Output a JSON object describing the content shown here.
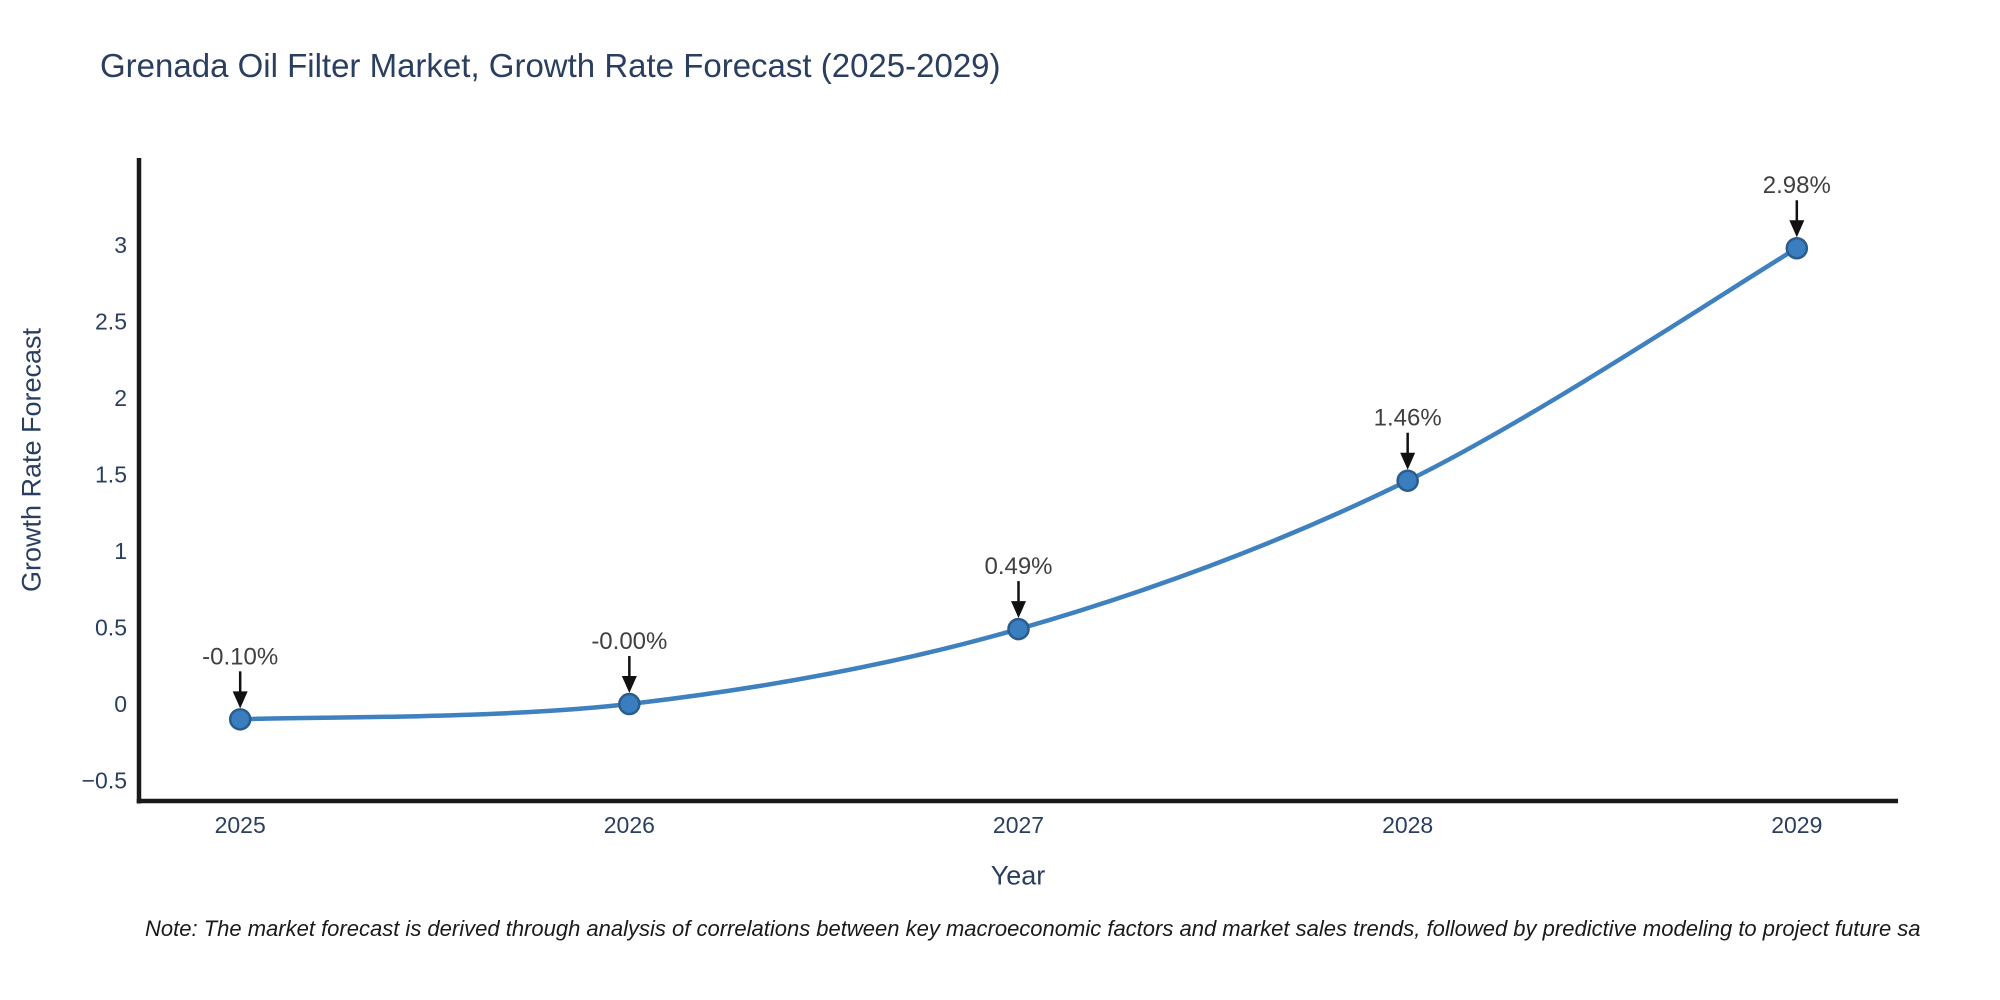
{
  "page": {
    "title": "Grenada Oil Filter Market, Growth Rate Forecast (2025-2029)",
    "note": "Note: The market forecast is derived through analysis of correlations between key macroeconomic factors and market sales trends, followed by predictive modeling to project future sa"
  },
  "chart_data": {
    "type": "line",
    "title": "Grenada Oil Filter Market, Growth Rate Forecast (2025-2029)",
    "xlabel": "Year",
    "ylabel": "Growth Rate Forecast",
    "x": [
      2025,
      2026,
      2027,
      2028,
      2029
    ],
    "series": [
      {
        "name": "Growth Rate Forecast",
        "values": [
          -0.1,
          -0.0,
          0.49,
          1.46,
          2.98
        ]
      }
    ],
    "point_labels": [
      "-0.10%",
      "-0.00%",
      "0.49%",
      "1.46%",
      "2.98%"
    ],
    "xtick_labels": [
      "2025",
      "2026",
      "2027",
      "2028",
      "2029"
    ],
    "yticks": [
      -0.5,
      0,
      0.5,
      1,
      1.5,
      2,
      2.5,
      3
    ],
    "ytick_labels": [
      "−0.5",
      "0",
      "0.5",
      "1",
      "1.5",
      "2",
      "2.5",
      "3"
    ],
    "xlim": [
      2024.74,
      2029.26
    ],
    "ylim": [
      -0.634,
      3.57
    ],
    "grid": false,
    "legend": "none",
    "line_shape": "spline",
    "annotation_arrows": true,
    "colors": {
      "line": "#3f80bf",
      "marker_fill": "#3a7ebf",
      "marker_stroke": "#2a5d8c",
      "axis_line": "#1a1a1a",
      "tick_text": "#2a3f5f",
      "title_text": "#2a3f5f",
      "annotation_text": "#404040",
      "arrow": "#111111",
      "background": "#ffffff"
    }
  }
}
